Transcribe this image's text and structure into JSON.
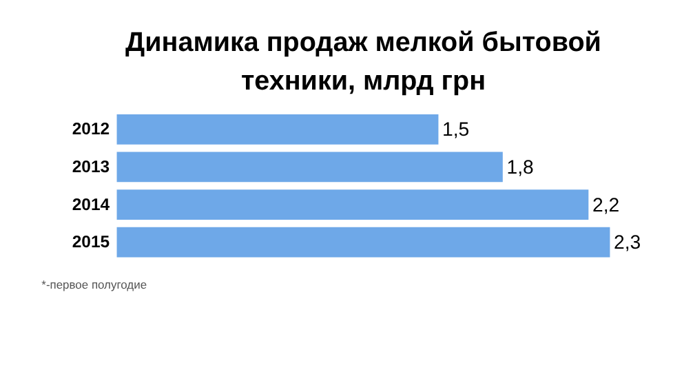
{
  "chart_data": {
    "type": "bar",
    "orientation": "horizontal",
    "title": [
      "Динамика продаж мелкой бытовой",
      "техники, млрд грн"
    ],
    "categories": [
      "2012",
      "2013",
      "2014",
      "2015"
    ],
    "values": [
      1.5,
      1.8,
      2.2,
      2.3
    ],
    "value_labels": [
      "1,5",
      "1,8",
      "2,2",
      "2,3"
    ],
    "color": "#6ea8e8",
    "annotations": [
      "*-первое полугодие"
    ],
    "grid": false
  }
}
